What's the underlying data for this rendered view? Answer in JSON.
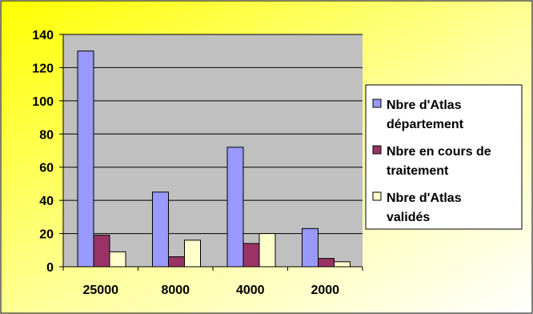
{
  "chart_data": {
    "type": "bar",
    "categories": [
      "25000",
      "8000",
      "4000",
      "2000"
    ],
    "series": [
      {
        "name": "Nbre d'Atlas département",
        "values": [
          130,
          45,
          72,
          23
        ],
        "color": "#9999ff"
      },
      {
        "name": "Nbre en cours de traitement",
        "values": [
          19,
          6,
          14,
          5
        ],
        "color": "#993366"
      },
      {
        "name": "Nbre d'Atlas validés",
        "values": [
          9,
          16,
          20,
          3
        ],
        "color": "#ffffcc"
      }
    ],
    "ylim": [
      0,
      140
    ],
    "yticks": [
      0,
      20,
      40,
      60,
      80,
      100,
      120,
      140
    ],
    "grid": true,
    "legend": "right",
    "plot_background": "#c0c0c0",
    "background": "yellow-white gradient"
  }
}
